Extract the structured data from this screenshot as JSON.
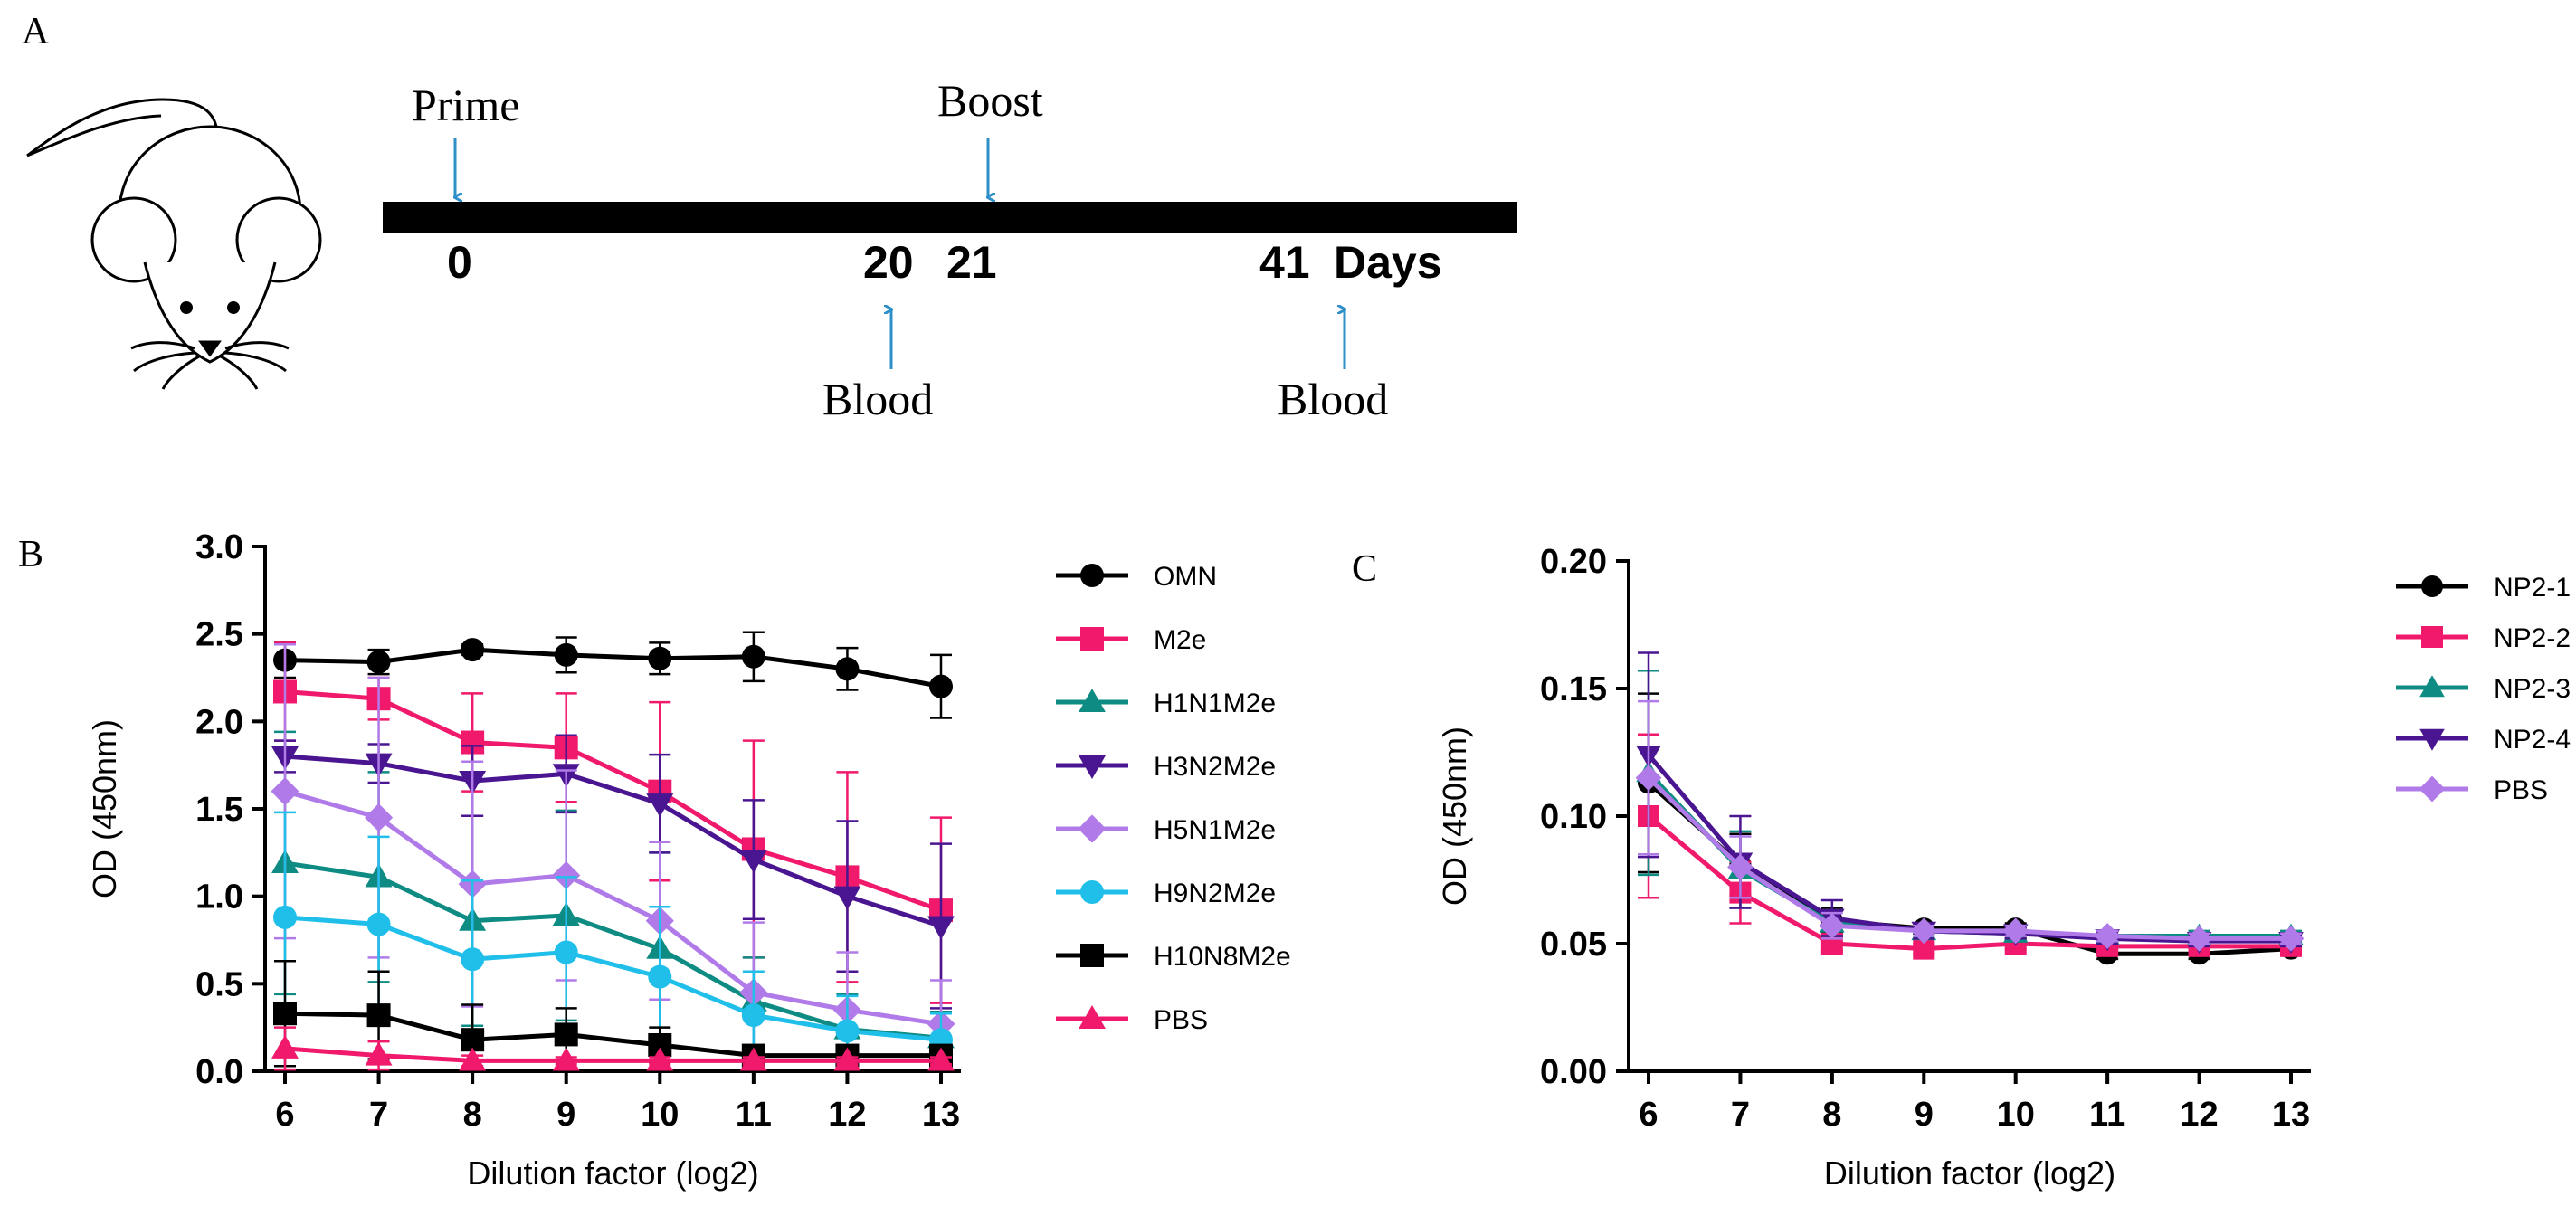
{
  "panels": {
    "a": "A",
    "b": "B",
    "c": "C"
  },
  "timeline": {
    "prime_label": "Prime",
    "boost_label": "Boost",
    "blood_label_1": "Blood",
    "blood_label_2": "Blood",
    "day_0": "0",
    "day_20": "20",
    "day_21": "21",
    "day_41": "41",
    "days_label": "Days",
    "arrow_color": "#2e8fc9"
  },
  "chart_data": [
    {
      "id": "B",
      "type": "line",
      "x": [
        6,
        7,
        8,
        9,
        10,
        11,
        12,
        13
      ],
      "categories": [
        "6",
        "7",
        "8",
        "9",
        "10",
        "11",
        "12",
        "13"
      ],
      "xlabel": "Dilution factor (log2)",
      "ylabel": "OD (450nm)",
      "ylim": [
        0,
        3.0
      ],
      "yticks": [
        "0.0",
        "0.5",
        "1.0",
        "1.5",
        "2.0",
        "2.5",
        "3.0"
      ],
      "ytick_values": [
        0,
        0.5,
        1.0,
        1.5,
        2.0,
        2.5,
        3.0
      ],
      "legend_position": "right",
      "series": [
        {
          "name": "OMN",
          "color": "#000000",
          "marker": "circle",
          "values": [
            2.35,
            2.34,
            2.41,
            2.38,
            2.36,
            2.37,
            2.3,
            2.2
          ],
          "errors": [
            0.1,
            0.07,
            0.03,
            0.1,
            0.09,
            0.14,
            0.12,
            0.18
          ]
        },
        {
          "name": "M2e",
          "color": "#f0196c",
          "marker": "square",
          "values": [
            2.17,
            2.13,
            1.88,
            1.85,
            1.6,
            1.27,
            1.11,
            0.92
          ],
          "errors": [
            0.28,
            0.12,
            0.28,
            0.31,
            0.51,
            0.62,
            0.6,
            0.53
          ]
        },
        {
          "name": "H1N1M2e",
          "color": "#0e8c83",
          "marker": "triangle-up",
          "values": [
            1.19,
            1.11,
            0.86,
            0.89,
            0.7,
            0.4,
            0.24,
            0.19
          ],
          "errors": [
            0.75,
            0.6,
            0.6,
            0.6,
            0.55,
            0.25,
            0.2,
            0.15
          ]
        },
        {
          "name": "H3N2M2e",
          "color": "#4a1590",
          "marker": "triangle-down",
          "values": [
            1.8,
            1.76,
            1.66,
            1.7,
            1.53,
            1.21,
            1.0,
            0.83
          ],
          "errors": [
            0.09,
            0.11,
            0.2,
            0.22,
            0.28,
            0.34,
            0.43,
            0.47
          ]
        },
        {
          "name": "H5N1M2e",
          "color": "#b07be8",
          "marker": "diamond",
          "values": [
            1.6,
            1.45,
            1.07,
            1.12,
            0.86,
            0.45,
            0.35,
            0.27
          ],
          "errors": [
            0.84,
            0.8,
            0.7,
            0.6,
            0.45,
            0.4,
            0.33,
            0.25
          ]
        },
        {
          "name": "H9N2M2e",
          "color": "#1fbfea",
          "marker": "circle",
          "values": [
            0.88,
            0.84,
            0.64,
            0.68,
            0.54,
            0.32,
            0.23,
            0.18
          ],
          "errors": [
            0.6,
            0.5,
            0.45,
            0.43,
            0.4,
            0.25,
            0.2,
            0.15
          ]
        },
        {
          "name": "H10N8M2e",
          "color": "#000000",
          "marker": "square",
          "values": [
            0.33,
            0.32,
            0.18,
            0.21,
            0.15,
            0.09,
            0.09,
            0.09
          ],
          "errors": [
            0.3,
            0.25,
            0.2,
            0.15,
            0.1,
            0.05,
            0.05,
            0.05
          ]
        },
        {
          "name": "PBS",
          "color": "#f0196c",
          "marker": "triangle-up",
          "values": [
            0.13,
            0.09,
            0.06,
            0.06,
            0.06,
            0.06,
            0.06,
            0.06
          ],
          "errors": [
            0.12,
            0.08,
            0.03,
            0.02,
            0.02,
            0.02,
            0.02,
            0.02
          ]
        }
      ]
    },
    {
      "id": "C",
      "type": "line",
      "x": [
        6,
        7,
        8,
        9,
        10,
        11,
        12,
        13
      ],
      "categories": [
        "6",
        "7",
        "8",
        "9",
        "10",
        "11",
        "12",
        "13"
      ],
      "xlabel": "Dilution factor (log2)",
      "ylabel": "OD (450nm)",
      "ylim": [
        0,
        0.2
      ],
      "yticks": [
        "0.00",
        "0.05",
        "0.10",
        "0.15",
        "0.20"
      ],
      "ytick_values": [
        0,
        0.05,
        0.1,
        0.15,
        0.2
      ],
      "legend_position": "right",
      "series": [
        {
          "name": "NP2-1",
          "color": "#000000",
          "marker": "circle",
          "values": [
            0.113,
            0.081,
            0.059,
            0.056,
            0.056,
            0.046,
            0.046,
            0.048
          ],
          "errors": [
            0.035,
            0.012,
            0.005,
            0.002,
            0.002,
            0.002,
            0.002,
            0.002
          ]
        },
        {
          "name": "NP2-2",
          "color": "#f0196c",
          "marker": "square",
          "values": [
            0.1,
            0.07,
            0.05,
            0.048,
            0.05,
            0.049,
            0.049,
            0.049
          ],
          "errors": [
            0.032,
            0.012,
            0.003,
            0.002,
            0.002,
            0.002,
            0.002,
            0.002
          ]
        },
        {
          "name": "NP2-3",
          "color": "#0e8c83",
          "marker": "triangle-up",
          "values": [
            0.117,
            0.079,
            0.058,
            0.055,
            0.054,
            0.053,
            0.053,
            0.053
          ],
          "errors": [
            0.04,
            0.015,
            0.005,
            0.003,
            0.002,
            0.002,
            0.002,
            0.002
          ]
        },
        {
          "name": "NP2-4",
          "color": "#4a1590",
          "marker": "triangle-down",
          "values": [
            0.124,
            0.082,
            0.06,
            0.055,
            0.054,
            0.052,
            0.051,
            0.051
          ],
          "errors": [
            0.04,
            0.018,
            0.007,
            0.003,
            0.002,
            0.002,
            0.002,
            0.002
          ]
        },
        {
          "name": "PBS",
          "color": "#b07be8",
          "marker": "diamond",
          "values": [
            0.115,
            0.08,
            0.057,
            0.055,
            0.055,
            0.053,
            0.052,
            0.052
          ],
          "errors": [
            0.03,
            0.012,
            0.005,
            0.002,
            0.002,
            0.002,
            0.002,
            0.002
          ]
        }
      ]
    }
  ]
}
